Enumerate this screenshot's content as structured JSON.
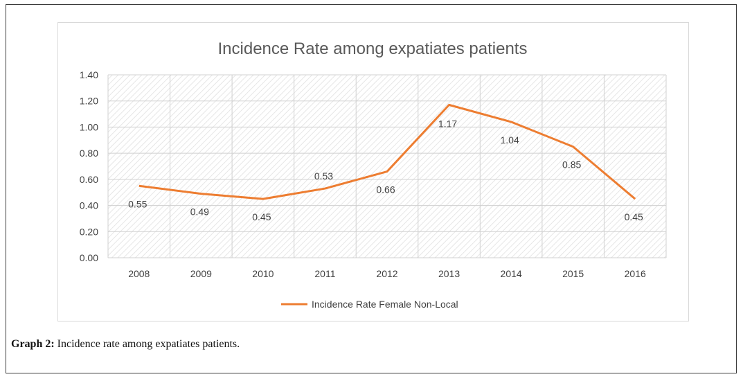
{
  "caption": {
    "label": "Graph 2:",
    "text": " Incidence rate among expatiates patients."
  },
  "chart_data": {
    "type": "line",
    "title": "Incidence Rate among expatiates patients",
    "categories": [
      "2008",
      "2009",
      "2010",
      "2011",
      "2012",
      "2013",
      "2014",
      "2015",
      "2016"
    ],
    "series": [
      {
        "name": "Incidence  Rate Female Non-Local",
        "values": [
          0.55,
          0.49,
          0.45,
          0.53,
          0.66,
          1.17,
          1.04,
          0.85,
          0.45
        ],
        "data_labels": [
          "0.55",
          "0.49",
          "0.45",
          "0.53",
          "0.66",
          "1.17",
          "1.04",
          "0.85",
          "0.45"
        ],
        "color": "#ED7D31"
      }
    ],
    "ylim": [
      0,
      1.4
    ],
    "yticks": [
      "0.00",
      "0.20",
      "0.40",
      "0.60",
      "0.80",
      "1.00",
      "1.20",
      "1.40"
    ],
    "xlabel": "",
    "ylabel": "",
    "grid": true,
    "legend": "bottom"
  }
}
